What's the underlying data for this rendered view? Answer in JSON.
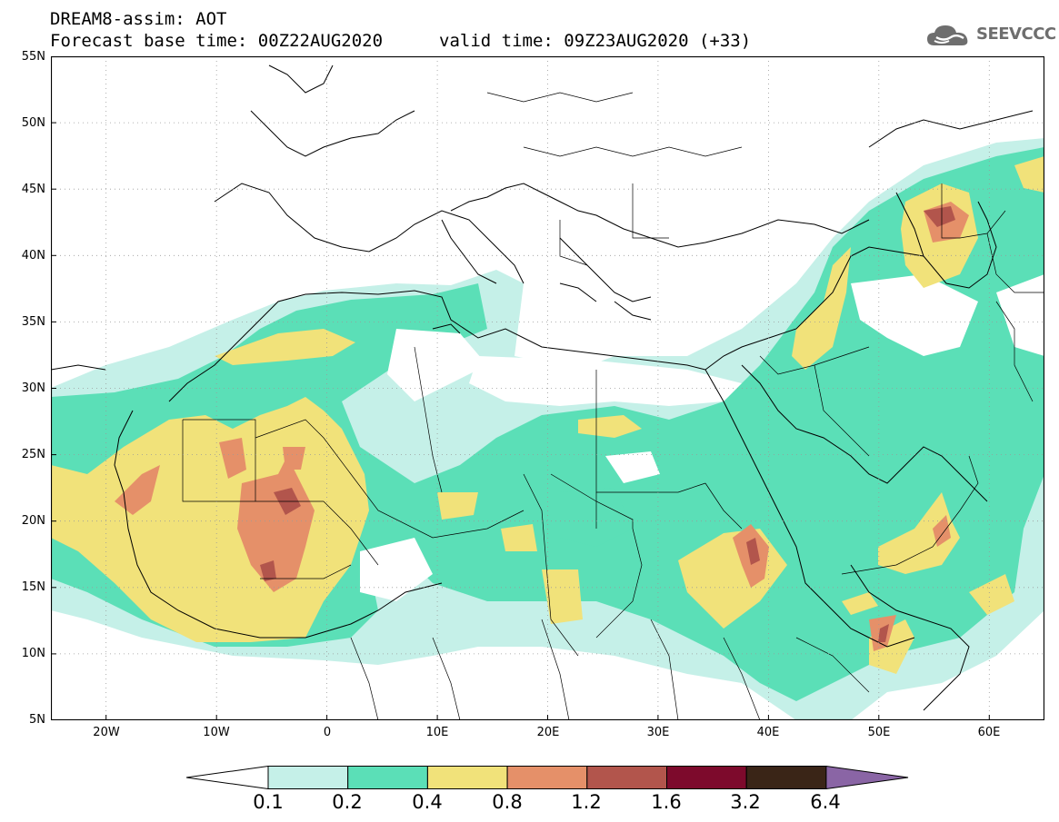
{
  "title": {
    "line1": "DREAM8-assim: AOT",
    "line2": "Forecast base time: 00Z22AUG2020",
    "line3": "valid time: 09Z23AUG2020 (+33)"
  },
  "logo": {
    "text": "SEEVCCC",
    "icon": "cloud-icon"
  },
  "map": {
    "projection": "lat-lon",
    "lon_range": [
      -25,
      65
    ],
    "lat_range": [
      5,
      55
    ],
    "lat_labels": [
      "55N",
      "50N",
      "45N",
      "40N",
      "35N",
      "30N",
      "25N",
      "20N",
      "15N",
      "10N",
      "5N"
    ],
    "lon_labels": [
      "20W",
      "10W",
      "0",
      "10E",
      "20E",
      "30E",
      "40E",
      "50E",
      "60E"
    ],
    "gridlines": "dotted"
  },
  "colorbar": {
    "labels": [
      "0.1",
      "0.2",
      "0.4",
      "0.8",
      "1.2",
      "1.6",
      "3.2",
      "6.4"
    ],
    "colors": [
      "#ffffff",
      "#c5f0e8",
      "#5bdfb7",
      "#f1e27a",
      "#e59069",
      "#b2554c",
      "#7d0a2c",
      "#3a2517",
      "#8a65a5"
    ]
  }
}
